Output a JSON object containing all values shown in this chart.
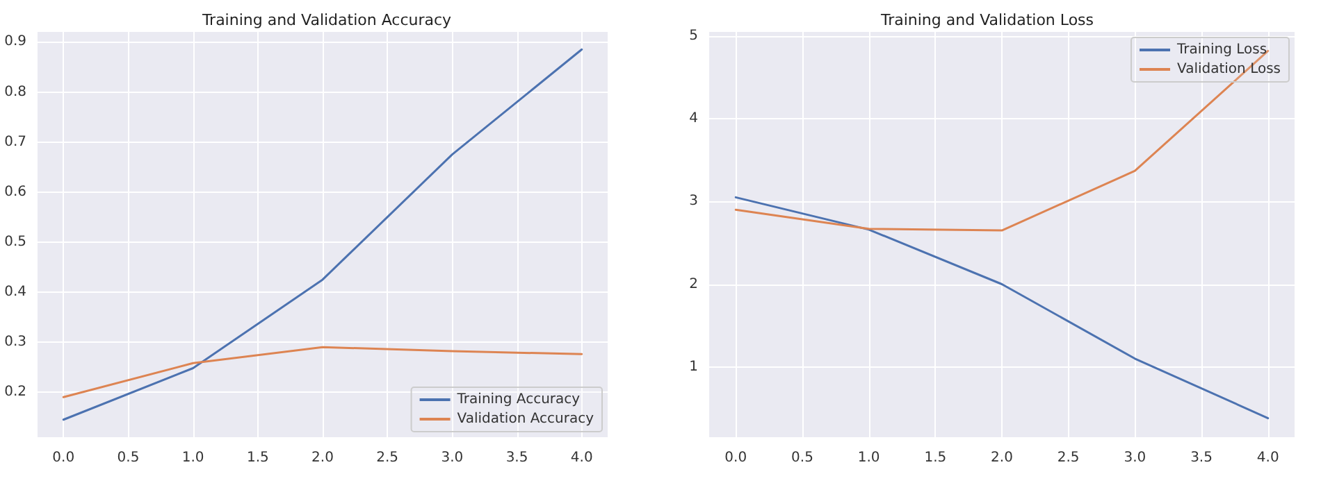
{
  "chart_data": [
    {
      "type": "line",
      "title": "Training and Validation Accuracy",
      "x": [
        0,
        1,
        2,
        3,
        4
      ],
      "xlim": [
        -0.2,
        4.2
      ],
      "xticks": [
        {
          "value": 0,
          "label": "0.0"
        },
        0.5,
        {
          "value": 1,
          "label": "1.0"
        },
        1.5,
        {
          "value": 2,
          "label": "2.0"
        },
        2.5,
        {
          "value": 3,
          "label": "3.0"
        },
        3.5,
        {
          "value": 4,
          "label": "4.0"
        }
      ],
      "ylim": [
        0.11,
        0.92
      ],
      "yticks": [
        0.2,
        0.3,
        0.4,
        0.5,
        0.6,
        0.7,
        0.8,
        0.9
      ],
      "grid": true,
      "legend": "bottom right",
      "marker": "none",
      "line_style": "solid",
      "series": [
        {
          "name": "Training Accuracy",
          "color": "#4c72b0",
          "values": [
            0.145,
            0.248,
            0.425,
            0.675,
            0.885
          ]
        },
        {
          "name": "Validation Accuracy",
          "color": "#dd8452",
          "values": [
            0.19,
            0.258,
            0.29,
            0.282,
            0.276
          ]
        }
      ]
    },
    {
      "type": "line",
      "title": "Training and Validation Loss",
      "x": [
        0,
        1,
        2,
        3,
        4
      ],
      "xlim": [
        -0.2,
        4.2
      ],
      "xticks": [
        {
          "value": 0,
          "label": "0.0"
        },
        0.5,
        {
          "value": 1,
          "label": "1.0"
        },
        1.5,
        {
          "value": 2,
          "label": "2.0"
        },
        2.5,
        {
          "value": 3,
          "label": "3.0"
        },
        3.5,
        {
          "value": 4,
          "label": "4.0"
        }
      ],
      "ylim": [
        0.15,
        5.05
      ],
      "yticks": [
        1,
        2,
        3,
        4,
        5
      ],
      "grid": true,
      "legend": "top right",
      "marker": "none",
      "line_style": "solid",
      "series": [
        {
          "name": "Training Loss",
          "color": "#4c72b0",
          "values": [
            3.05,
            2.66,
            2.0,
            1.1,
            0.38
          ]
        },
        {
          "name": "Validation Loss",
          "color": "#dd8452",
          "values": [
            2.9,
            2.67,
            2.65,
            3.37,
            4.82
          ]
        }
      ]
    }
  ]
}
